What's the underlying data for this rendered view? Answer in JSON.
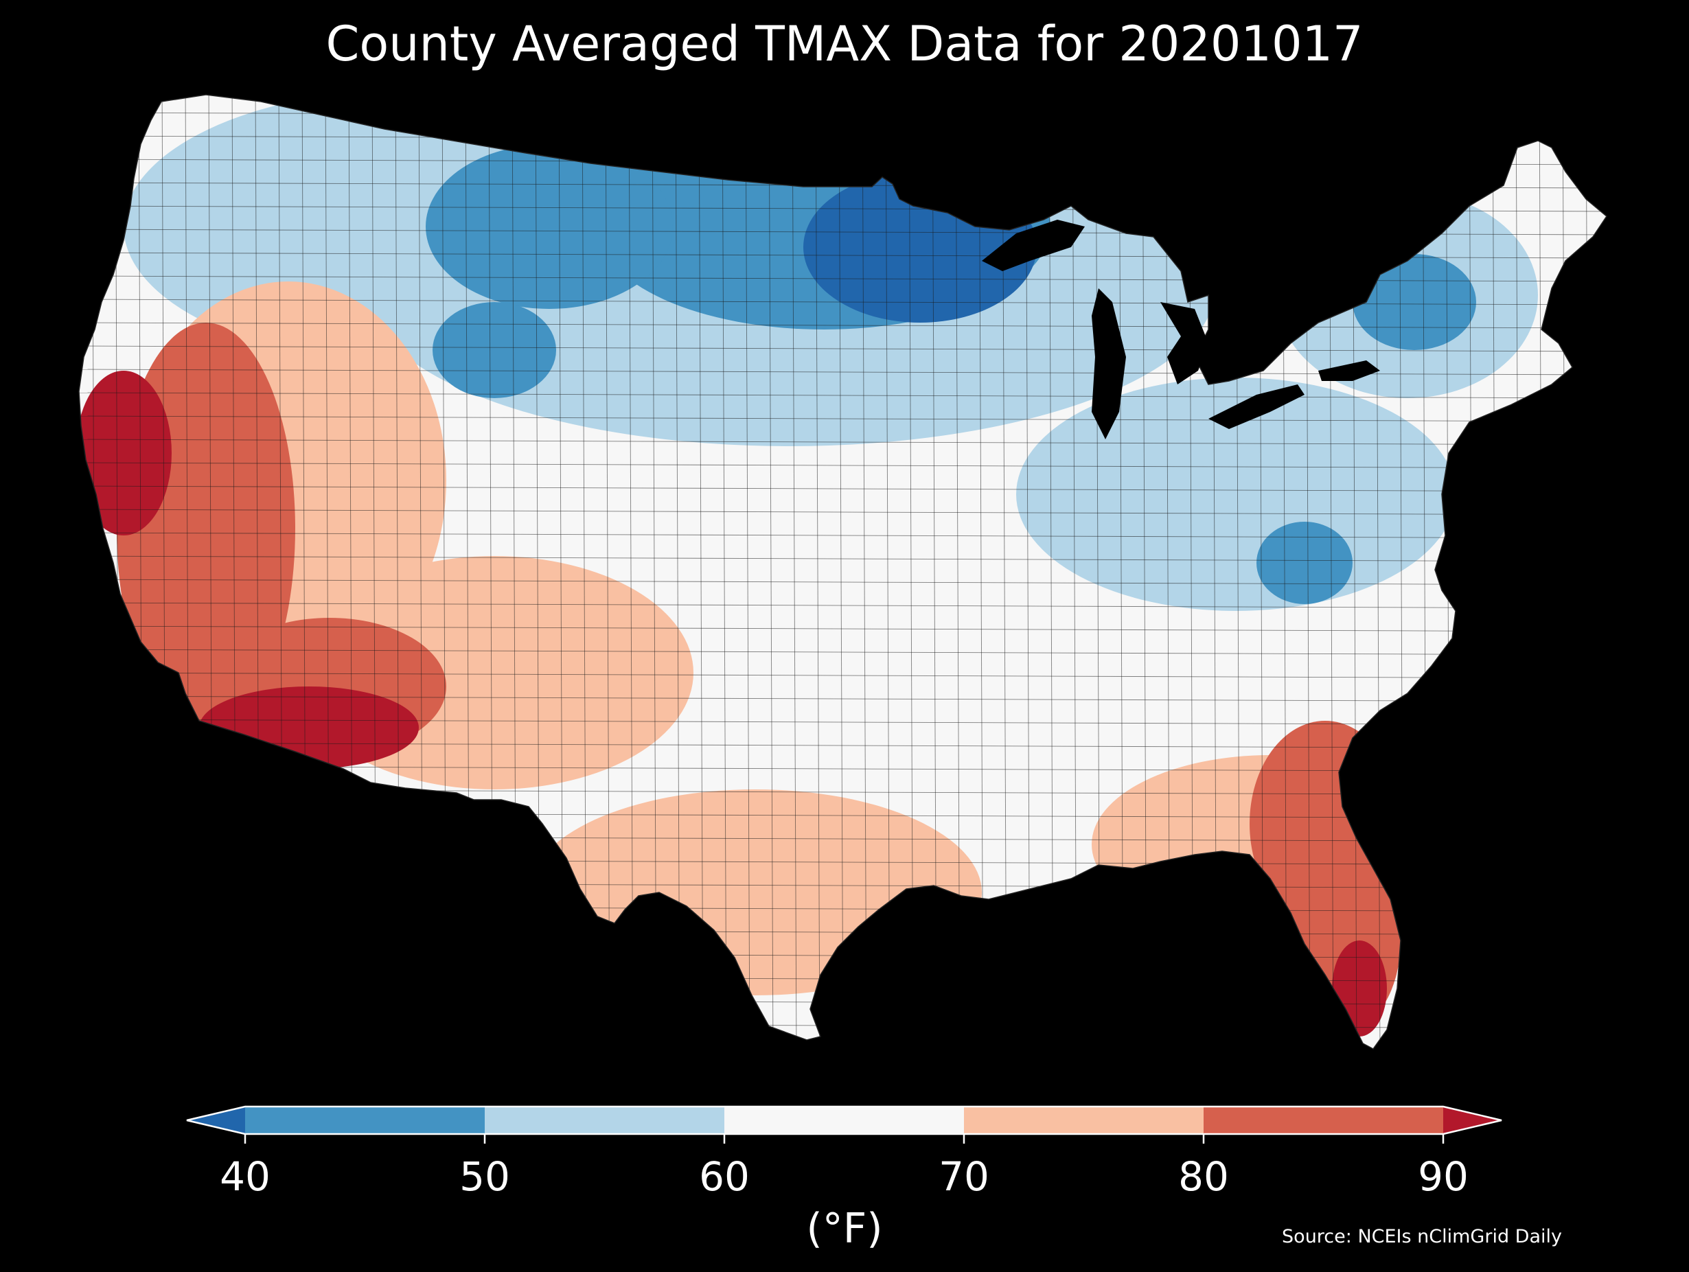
{
  "chart_data": {
    "type": "choropleth",
    "title": "County Averaged TMAX Data for 20201017",
    "region": "Contiguous United States (counties)",
    "colorbar": {
      "unit_label": "(°F)",
      "ticks": [
        40,
        50,
        60,
        70,
        80,
        90
      ],
      "bins": [
        {
          "range": [
            null,
            40
          ],
          "color": "#2166ac"
        },
        {
          "range": [
            40,
            50
          ],
          "color": "#4393c3"
        },
        {
          "range": [
            50,
            60
          ],
          "color": "#b3d5e8"
        },
        {
          "range": [
            60,
            70
          ],
          "color": "#f7f7f7"
        },
        {
          "range": [
            70,
            80
          ],
          "color": "#f9c0a2"
        },
        {
          "range": [
            80,
            90
          ],
          "color": "#d6604d"
        },
        {
          "range": [
            90,
            null
          ],
          "color": "#b2182b"
        }
      ],
      "extend": "both",
      "outline_color": "#ffffff"
    },
    "source": "Source: NCEIs nClimGrid Daily",
    "background": "#000000",
    "water_color": "#000000"
  }
}
